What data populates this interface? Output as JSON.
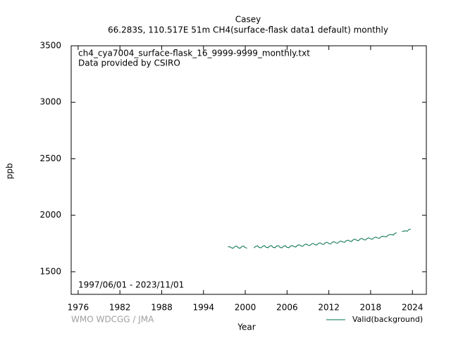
{
  "chart_data": {
    "type": "line",
    "title": "Casey",
    "subtitle": "66.283S, 110.517E 51m    CH4(surface-flask data1 default) monthly",
    "annotations": [
      "ch4_cya7004_surface-flask_16_9999-9999_monthly.txt",
      "Data provided by CSIRO",
      "1997/06/01 - 2023/11/01"
    ],
    "credit": "WMO WDCGG / JMA",
    "xlabel": "Year",
    "ylabel": "ppb",
    "xlim": [
      1975,
      2026
    ],
    "ylim": [
      1300,
      3500
    ],
    "xticks": [
      1976,
      1982,
      1988,
      1994,
      2000,
      2006,
      2012,
      2018,
      2024
    ],
    "yticks": [
      1500,
      2000,
      2500,
      3000,
      3500
    ],
    "x": [
      1997.5,
      1997.75,
      1998,
      1998.25,
      1998.5,
      1998.75,
      1999,
      1999.25,
      1999.5,
      1999.75,
      2000,
      2000.25,
      2000.75,
      2001.25,
      2001.5,
      2001.75,
      2002,
      2002.25,
      2002.5,
      2002.75,
      2003,
      2003.25,
      2003.5,
      2003.75,
      2004,
      2004.25,
      2004.5,
      2004.75,
      2005,
      2005.25,
      2005.5,
      2005.75,
      2006,
      2006.25,
      2006.5,
      2006.75,
      2007,
      2007.25,
      2007.5,
      2007.75,
      2008,
      2008.25,
      2008.5,
      2008.75,
      2009,
      2009.25,
      2009.5,
      2009.75,
      2010,
      2010.25,
      2010.5,
      2010.75,
      2011,
      2011.25,
      2011.5,
      2011.75,
      2012,
      2012.25,
      2012.5,
      2012.75,
      2013,
      2013.25,
      2013.5,
      2013.75,
      2014,
      2014.25,
      2014.5,
      2014.75,
      2015,
      2015.25,
      2015.5,
      2015.75,
      2016,
      2016.25,
      2016.5,
      2016.75,
      2017,
      2017.25,
      2017.5,
      2017.75,
      2018,
      2018.25,
      2018.5,
      2018.75,
      2019,
      2019.25,
      2019.5,
      2019.75,
      2020,
      2020.25,
      2020.5,
      2020.75,
      2021,
      2021.25,
      2021.5,
      2021.75,
      2022,
      2022.5,
      2022.75,
      2023,
      2023.25,
      2023.5,
      2023.75
    ],
    "series": [
      {
        "name": "Valid(background)",
        "color": "#00704a",
        "values": [
          1718,
          1723,
          1712,
          1708,
          1723,
          1728,
          1712,
          1708,
          1723,
          1728,
          1713,
          1709,
          null,
          1710,
          1725,
          1730,
          1715,
          1711,
          1726,
          1731,
          1716,
          1712,
          1727,
          1732,
          1716,
          1712,
          1727,
          1732,
          1715,
          1711,
          1726,
          1731,
          1716,
          1712,
          1727,
          1732,
          1723,
          1719,
          1734,
          1739,
          1729,
          1725,
          1740,
          1745,
          1735,
          1731,
          1746,
          1751,
          1740,
          1736,
          1751,
          1756,
          1745,
          1741,
          1756,
          1761,
          1750,
          1746,
          1761,
          1766,
          1756,
          1752,
          1767,
          1772,
          1764,
          1760,
          1775,
          1780,
          1772,
          1768,
          1783,
          1788,
          1779,
          1775,
          1790,
          1795,
          1784,
          1780,
          1795,
          1800,
          1791,
          1787,
          1802,
          1807,
          1799,
          1795,
          1810,
          1815,
          1812,
          1808,
          1823,
          1828,
          1829,
          1825,
          1840,
          1845,
          null,
          1855,
          1860,
          1862,
          1858,
          1873,
          1878
        ]
      }
    ]
  }
}
